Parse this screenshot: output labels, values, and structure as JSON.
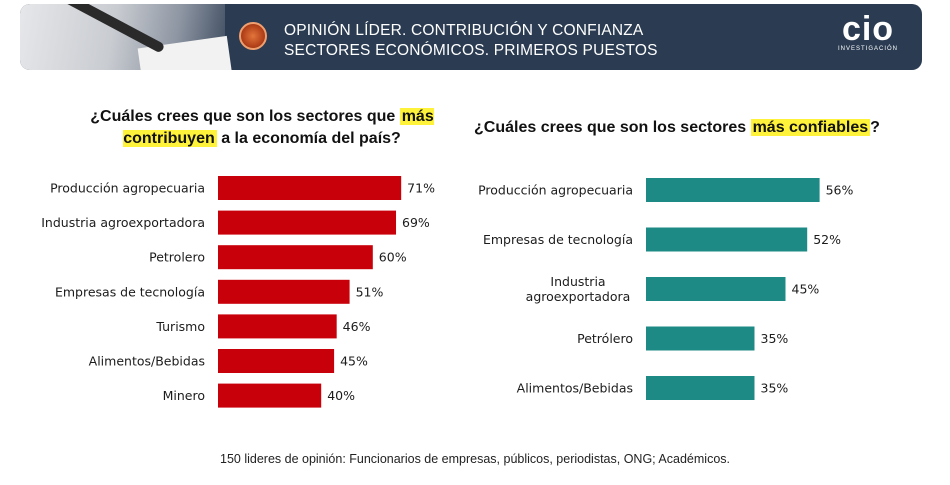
{
  "header": {
    "title_line1": "OPINIÓN LÍDER. CONTRIBUCIÓN Y CONFIANZA",
    "title_line2": "SECTORES ECONÓMICOS. PRIMEROS PUESTOS",
    "brand_name": "cio",
    "brand_sub": "INVESTIGACIÓN"
  },
  "left": {
    "q_part1": "¿Cuáles crees que son los sectores que ",
    "q_highlight": "más contribuyen",
    "q_part2": " a la economía del país?"
  },
  "right": {
    "q_part1": "¿Cuáles crees que son los sectores ",
    "q_highlight": "más confiables",
    "q_part2": "?"
  },
  "footnote": "150 lideres de opinión: Funcionarios de empresas, públicos, periodistas, ONG; Académicos.",
  "colors": {
    "left_bar": "#c8000a",
    "right_bar": "#1e8a86",
    "header_bg": "#2b3c52",
    "highlight": "#fff23a"
  },
  "chart_data": [
    {
      "type": "bar",
      "orientation": "horizontal",
      "title": "¿Cuáles crees que son los sectores que más contribuyen a la economía del país?",
      "categories": [
        "Producción agropecuaria",
        "Industria agroexportadora",
        "Petrolero",
        "Empresas de tecnología",
        "Turismo",
        "Alimentos/Bebidas",
        "Minero"
      ],
      "values": [
        71,
        69,
        60,
        51,
        46,
        45,
        40
      ],
      "value_labels": [
        "71%",
        "69%",
        "60%",
        "51%",
        "46%",
        "45%",
        "40%"
      ],
      "unit": "%",
      "xlim": [
        0,
        100
      ]
    },
    {
      "type": "bar",
      "orientation": "horizontal",
      "title": "¿Cuáles crees que son los sectores más confiables?",
      "categories": [
        "Producción agropecuaria",
        "Empresas de tecnología",
        "Industria agroexportadora",
        "Petrólero",
        "Alimentos/Bebidas"
      ],
      "category_lines": [
        [
          "Producción agropecuaria"
        ],
        [
          "Empresas de tecnología"
        ],
        [
          "Industria",
          "agroexportadora"
        ],
        [
          "Petrólero"
        ],
        [
          "Alimentos/Bebidas"
        ]
      ],
      "values": [
        56,
        52,
        45,
        35,
        35
      ],
      "value_labels": [
        "56%",
        "52%",
        "45%",
        "35%",
        "35%"
      ],
      "unit": "%",
      "xlim": [
        0,
        100
      ]
    }
  ]
}
